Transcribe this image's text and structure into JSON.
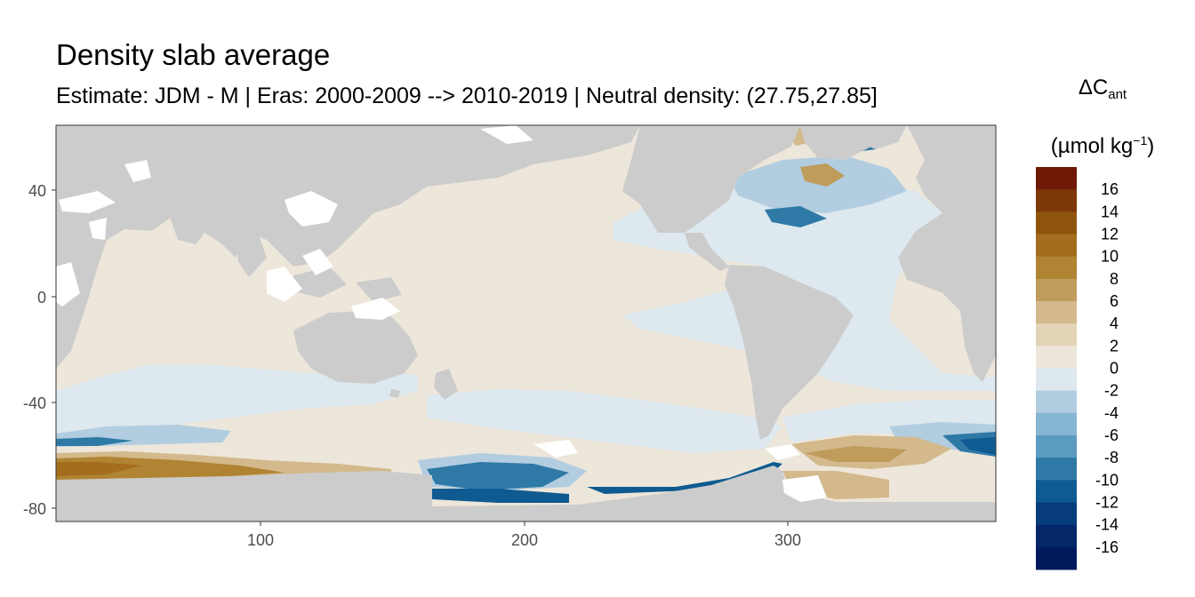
{
  "title": "Density slab average",
  "subtitle": "Estimate: JDM - M | Eras: 2000-2009 --> 2010-2019 | Neutral density: (27.75,27.85]",
  "legend": {
    "symbol": "ΔC",
    "subscript": "ant",
    "unit_open": "(µmol kg",
    "unit_sup": "−1",
    "unit_close": ")",
    "bins": [
      {
        "label": "16",
        "color": "#6e1a06"
      },
      {
        "label": "14",
        "color": "#7d3807"
      },
      {
        "label": "12",
        "color": "#8f540b"
      },
      {
        "label": "10",
        "color": "#a46d1d"
      },
      {
        "label": "8",
        "color": "#b08432"
      },
      {
        "label": "6",
        "color": "#bf9c5c"
      },
      {
        "label": "4",
        "color": "#d3b98c"
      },
      {
        "label": "2",
        "color": "#e3d3b7"
      },
      {
        "label": "0",
        "color": "#ede6da"
      },
      {
        "label": "-2",
        "color": "#dde8ef"
      },
      {
        "label": "-4",
        "color": "#b2cde0"
      },
      {
        "label": "-6",
        "color": "#86b5d1"
      },
      {
        "label": "-8",
        "color": "#5b9bc0"
      },
      {
        "label": "-10",
        "color": "#2f79a7"
      },
      {
        "label": "-12",
        "color": "#0f5b91"
      },
      {
        "label": "-14",
        "color": "#073d7a"
      },
      {
        "label": "-16",
        "color": "#042769"
      },
      {
        "label": "",
        "color": "#001a5c"
      }
    ]
  },
  "map": {
    "land_color": "#cccccc",
    "ocean_base_color": "#ede6da",
    "x_ticks": [
      "100",
      "200",
      "300"
    ],
    "y_ticks": [
      "40",
      "0",
      "-40",
      "-80"
    ]
  }
}
